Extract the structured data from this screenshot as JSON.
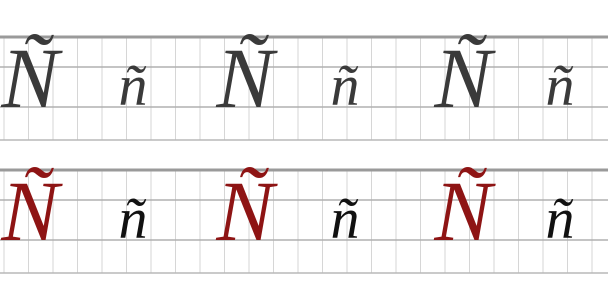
{
  "rows": [
    {
      "letters": [
        "Ñ",
        "ñ",
        "Ñ",
        "ñ",
        "Ñ",
        "ñ"
      ]
    },
    {
      "letters": [
        "Ñ",
        "ñ",
        "Ñ",
        "ñ",
        "Ñ",
        "ñ"
      ]
    }
  ]
}
